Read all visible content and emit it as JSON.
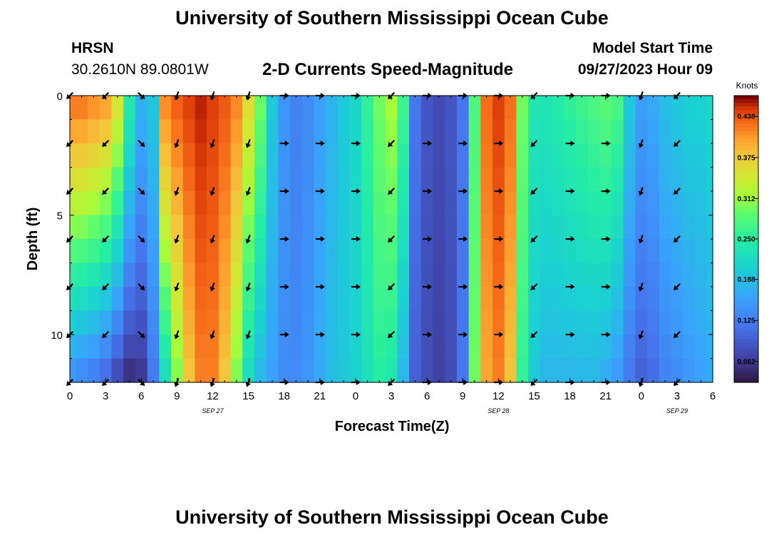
{
  "header": {
    "title": "University of Southern Mississippi Ocean Cube",
    "station": "HRSN",
    "coordinates": "30.2610N  89.0801W",
    "chart_title": "2-D Currents Speed-Magnitude",
    "model_start_label": "Model Start Time",
    "model_start_value": "09/27/2023 Hour 09"
  },
  "footer": {
    "title": "University of Southern Mississippi Ocean Cube"
  },
  "chart_data": {
    "type": "heatmap",
    "title": "2-D Currents Speed-Magnitude",
    "xlabel": "Forecast Time(Z)",
    "ylabel": "Depth (ft)",
    "units": "Knots",
    "x_hours": [
      0,
      54
    ],
    "y_depth_ft": [
      0,
      12
    ],
    "x_ticks": [
      {
        "h": 0,
        "label": "0"
      },
      {
        "h": 3,
        "label": "3"
      },
      {
        "h": 6,
        "label": "6"
      },
      {
        "h": 9,
        "label": "9"
      },
      {
        "h": 12,
        "label": "12"
      },
      {
        "h": 15,
        "label": "15"
      },
      {
        "h": 18,
        "label": "18"
      },
      {
        "h": 21,
        "label": "21"
      },
      {
        "h": 24,
        "label": "0"
      },
      {
        "h": 27,
        "label": "3"
      },
      {
        "h": 30,
        "label": "6"
      },
      {
        "h": 33,
        "label": "9"
      },
      {
        "h": 36,
        "label": "12"
      },
      {
        "h": 39,
        "label": "15"
      },
      {
        "h": 42,
        "label": "18"
      },
      {
        "h": 45,
        "label": "21"
      },
      {
        "h": 48,
        "label": "0"
      },
      {
        "h": 51,
        "label": "3"
      },
      {
        "h": 54,
        "label": "6"
      }
    ],
    "date_labels": [
      {
        "h": 12,
        "label": "SEP 27"
      },
      {
        "h": 36,
        "label": "SEP 28"
      },
      {
        "h": 51,
        "label": "SEP 29"
      }
    ],
    "y_ticks": [
      {
        "d": 0,
        "label": "0"
      },
      {
        "d": 5,
        "label": "5"
      },
      {
        "d": 10,
        "label": "10"
      }
    ],
    "colorbar": {
      "min": 0.03,
      "max": 0.47,
      "ticks": [
        "0.438",
        "0.375",
        "0.312",
        "0.250",
        "0.188",
        "0.125",
        "0.062"
      ]
    },
    "profile_hours": [
      0,
      1,
      2,
      3,
      4,
      5,
      6,
      7,
      8,
      9,
      10,
      11,
      12,
      13,
      14,
      15,
      16,
      17,
      18,
      19,
      20,
      21,
      22,
      23,
      24,
      25,
      26,
      27,
      28,
      29,
      30,
      31,
      32,
      33,
      34,
      35,
      36,
      37,
      38,
      39,
      40,
      41,
      42,
      43,
      44,
      45,
      46,
      47,
      48,
      49,
      50,
      51,
      52,
      53,
      54
    ],
    "speed_surface": [
      0.43,
      0.43,
      0.42,
      0.41,
      0.36,
      0.25,
      0.18,
      0.2,
      0.42,
      0.44,
      0.45,
      0.46,
      0.45,
      0.44,
      0.42,
      0.36,
      0.3,
      0.2,
      0.15,
      0.13,
      0.14,
      0.16,
      0.18,
      0.2,
      0.22,
      0.26,
      0.3,
      0.32,
      0.27,
      0.12,
      0.09,
      0.08,
      0.09,
      0.12,
      0.28,
      0.43,
      0.45,
      0.43,
      0.3,
      0.24,
      0.24,
      0.25,
      0.26,
      0.27,
      0.28,
      0.29,
      0.28,
      0.2,
      0.16,
      0.17,
      0.19,
      0.2,
      0.21,
      0.21,
      0.22
    ],
    "speed_bottom": [
      0.14,
      0.13,
      0.12,
      0.1,
      0.07,
      0.05,
      0.06,
      0.12,
      0.22,
      0.3,
      0.38,
      0.42,
      0.42,
      0.38,
      0.3,
      0.22,
      0.18,
      0.16,
      0.14,
      0.14,
      0.15,
      0.17,
      0.19,
      0.2,
      0.21,
      0.23,
      0.25,
      0.24,
      0.18,
      0.1,
      0.08,
      0.07,
      0.08,
      0.12,
      0.3,
      0.4,
      0.42,
      0.38,
      0.26,
      0.2,
      0.18,
      0.18,
      0.18,
      0.18,
      0.18,
      0.17,
      0.15,
      0.12,
      0.1,
      0.11,
      0.13,
      0.14,
      0.15,
      0.16,
      0.17
    ],
    "arrow_hours": [
      0,
      3,
      6,
      9,
      12,
      15,
      18,
      21,
      24,
      27,
      30,
      33,
      36,
      39,
      42,
      45,
      48,
      51
    ],
    "arrow_depths_ft": [
      0,
      2,
      4,
      6,
      8,
      10,
      12
    ],
    "arrow_direction_deg": [
      225,
      225,
      135,
      200,
      200,
      200,
      90,
      90,
      90,
      225,
      90,
      90,
      90,
      225,
      90,
      90,
      200,
      225
    ]
  }
}
